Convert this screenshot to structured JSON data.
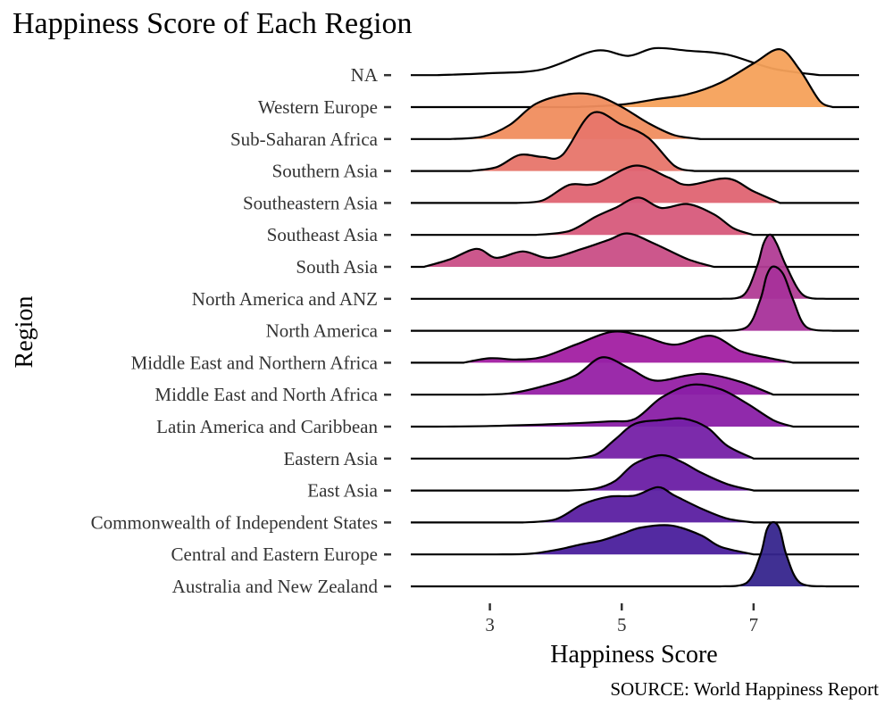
{
  "chart_data": {
    "type": "ridgeline",
    "title": "Happiness Score of Each Region",
    "caption": "SOURCE: World Happiness Report",
    "xlabel": "Happiness Score",
    "ylabel": "Region",
    "xlim": [
      1.8,
      8.6
    ],
    "x_ticks": [
      3,
      5,
      7
    ],
    "grid": false,
    "fill_colormap": "plasma",
    "categories": [
      "Australia and New Zealand",
      "Central and Eastern Europe",
      "Commonwealth of Independent States",
      "East Asia",
      "Eastern Asia",
      "Latin America and Caribbean",
      "Middle East and North Africa",
      "Middle East and Northern Africa",
      "North America",
      "North America and ANZ",
      "South Asia",
      "Southeast Asia",
      "Southeastern Asia",
      "Southern Asia",
      "Sub-Saharan Africa",
      "Western Europe",
      "NA"
    ],
    "series": [
      {
        "name": "Australia and New Zealand",
        "color": "#36258d",
        "filled": true,
        "x": [
          6.5,
          6.9,
          7.1,
          7.2,
          7.3,
          7.4,
          7.5,
          7.7,
          8.1
        ],
        "density": [
          0.0,
          0.06,
          0.48,
          0.88,
          1.0,
          0.88,
          0.48,
          0.06,
          0.0
        ]
      },
      {
        "name": "Central and Eastern Europe",
        "color": "#4a1f9c",
        "filled": true,
        "x": [
          3.1,
          3.6,
          4.0,
          4.4,
          4.7,
          5.0,
          5.3,
          5.75,
          6.2,
          6.5,
          7.0
        ],
        "density": [
          0.0,
          0.01,
          0.07,
          0.16,
          0.22,
          0.32,
          0.42,
          0.45,
          0.3,
          0.12,
          0.0
        ]
      },
      {
        "name": "Commonwealth of Independent States",
        "color": "#5b1fa1",
        "filled": true,
        "x": [
          3.5,
          4.0,
          4.4,
          4.8,
          5.2,
          5.55,
          5.8,
          6.2,
          6.6,
          7.0
        ],
        "density": [
          0.0,
          0.05,
          0.28,
          0.4,
          0.42,
          0.55,
          0.42,
          0.22,
          0.06,
          0.0
        ]
      },
      {
        "name": "East Asia",
        "color": "#6a1ea4",
        "filled": true,
        "x": [
          4.2,
          4.6,
          4.9,
          5.2,
          5.6,
          5.9,
          6.2,
          6.6,
          7.0
        ],
        "density": [
          0.0,
          0.03,
          0.15,
          0.42,
          0.55,
          0.45,
          0.28,
          0.1,
          0.0
        ]
      },
      {
        "name": "Eastern Asia",
        "color": "#7520a7",
        "filled": true,
        "x": [
          4.2,
          4.6,
          4.9,
          5.2,
          5.6,
          5.95,
          6.3,
          6.6,
          7.0
        ],
        "density": [
          0.0,
          0.06,
          0.3,
          0.54,
          0.6,
          0.62,
          0.48,
          0.2,
          0.0
        ]
      },
      {
        "name": "Latin America and Caribbean",
        "color": "#8a1fa7",
        "filled": true,
        "x": [
          2.2,
          3.0,
          4.0,
          4.8,
          5.2,
          5.6,
          6.05,
          6.5,
          6.9,
          7.3,
          7.6
        ],
        "density": [
          0.0,
          0.01,
          0.04,
          0.08,
          0.12,
          0.45,
          0.65,
          0.58,
          0.36,
          0.1,
          0.0
        ]
      },
      {
        "name": "Middle East and North Africa",
        "color": "#9620a5",
        "filled": true,
        "x": [
          2.8,
          3.3,
          3.8,
          4.3,
          4.7,
          5.1,
          5.5,
          6.0,
          6.3,
          6.8,
          7.3
        ],
        "density": [
          0.0,
          0.02,
          0.13,
          0.3,
          0.58,
          0.42,
          0.22,
          0.3,
          0.32,
          0.2,
          0.0
        ]
      },
      {
        "name": "Middle East and Northern Africa",
        "color": "#a21fa2",
        "filled": true,
        "x": [
          2.6,
          3.0,
          3.4,
          3.8,
          4.3,
          4.85,
          5.3,
          5.8,
          6.35,
          6.8,
          7.2,
          7.6
        ],
        "density": [
          0.0,
          0.07,
          0.05,
          0.09,
          0.28,
          0.48,
          0.42,
          0.28,
          0.42,
          0.18,
          0.08,
          0.0
        ]
      },
      {
        "name": "North America",
        "color": "#a8329a",
        "filled": true,
        "x": [
          6.5,
          6.9,
          7.1,
          7.2,
          7.3,
          7.45,
          7.6,
          7.8,
          8.2
        ],
        "density": [
          0.0,
          0.06,
          0.48,
          0.86,
          1.0,
          0.88,
          0.48,
          0.06,
          0.0
        ]
      },
      {
        "name": "North America and ANZ",
        "color": "#b13c95",
        "filled": true,
        "x": [
          6.5,
          6.85,
          7.05,
          7.15,
          7.25,
          7.35,
          7.5,
          7.75,
          8.1
        ],
        "density": [
          0.0,
          0.06,
          0.5,
          0.86,
          1.0,
          0.86,
          0.5,
          0.06,
          0.0
        ]
      },
      {
        "name": "South Asia",
        "color": "#c94e86",
        "filled": true,
        "x": [
          2.0,
          2.4,
          2.8,
          3.1,
          3.5,
          3.9,
          4.4,
          4.8,
          5.1,
          5.5,
          6.0,
          6.4
        ],
        "density": [
          0.0,
          0.12,
          0.28,
          0.14,
          0.24,
          0.14,
          0.28,
          0.42,
          0.52,
          0.36,
          0.12,
          0.0
        ]
      },
      {
        "name": "Southeast Asia",
        "color": "#d75a7b",
        "filled": true,
        "x": [
          3.7,
          4.2,
          4.6,
          4.9,
          5.25,
          5.6,
          6.0,
          6.4,
          6.7,
          7.0
        ],
        "density": [
          0.0,
          0.06,
          0.28,
          0.42,
          0.58,
          0.42,
          0.48,
          0.32,
          0.1,
          0.0
        ]
      },
      {
        "name": "Southeastern Asia",
        "color": "#df6472",
        "filled": true,
        "x": [
          3.4,
          3.8,
          4.2,
          4.6,
          5.2,
          5.7,
          6.0,
          6.6,
          7.0,
          7.4
        ],
        "density": [
          0.0,
          0.04,
          0.28,
          0.3,
          0.58,
          0.4,
          0.28,
          0.38,
          0.18,
          0.0
        ]
      },
      {
        "name": "Southern Asia",
        "color": "#e7756a",
        "filled": true,
        "x": [
          2.7,
          3.1,
          3.45,
          3.8,
          4.1,
          4.55,
          5.0,
          5.4,
          5.8,
          6.1
        ],
        "density": [
          0.0,
          0.06,
          0.25,
          0.22,
          0.25,
          0.9,
          0.72,
          0.52,
          0.08,
          0.0
        ]
      },
      {
        "name": "Sub-Saharan Africa",
        "color": "#f08d5e",
        "filled": true,
        "x": [
          2.4,
          2.9,
          3.3,
          3.7,
          4.2,
          4.6,
          5.0,
          5.4,
          5.8,
          6.2
        ],
        "density": [
          0.0,
          0.04,
          0.22,
          0.55,
          0.7,
          0.68,
          0.5,
          0.25,
          0.06,
          0.0
        ]
      },
      {
        "name": "Western Europe",
        "color": "#f6a15a",
        "filled": true,
        "x": [
          4.3,
          5.0,
          5.5,
          6.0,
          6.5,
          7.0,
          7.4,
          7.7,
          8.0,
          8.2
        ],
        "density": [
          0.0,
          0.04,
          0.12,
          0.2,
          0.38,
          0.68,
          0.9,
          0.58,
          0.1,
          0.0
        ]
      },
      {
        "name": "NA",
        "color": "#000000",
        "filled": false,
        "x": [
          2.2,
          3.0,
          3.8,
          4.6,
          5.1,
          5.5,
          6.0,
          6.6,
          7.3,
          8.0
        ],
        "density": [
          0.0,
          0.03,
          0.09,
          0.38,
          0.3,
          0.42,
          0.38,
          0.32,
          0.1,
          0.0
        ]
      }
    ]
  }
}
